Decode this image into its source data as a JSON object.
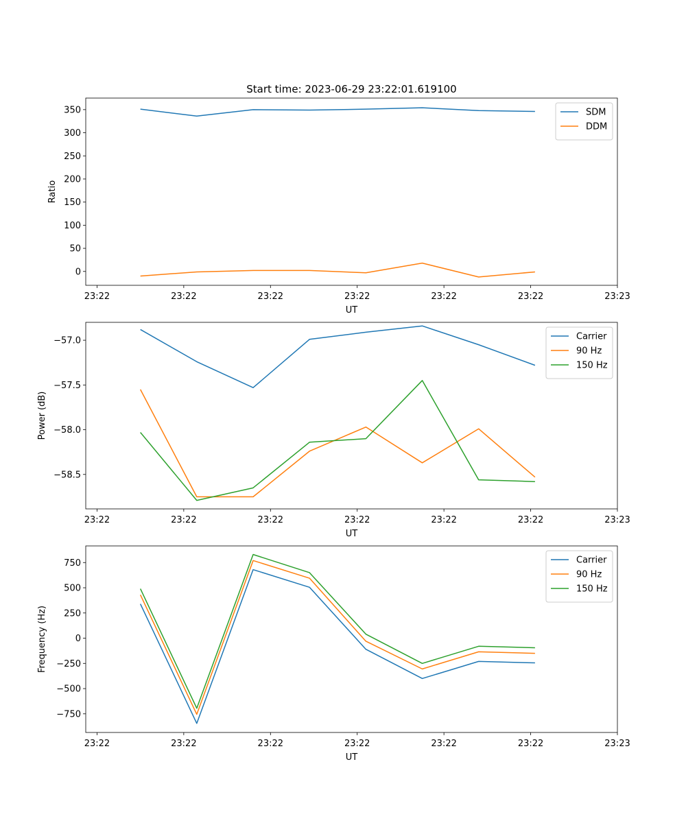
{
  "figure": {
    "title": "Start time: 2023-06-29 23:22:01.619100"
  },
  "chart_data": [
    {
      "type": "line",
      "title": "Start time: 2023-06-29 23:22:01.619100",
      "xlabel": "UT",
      "ylabel": "Ratio",
      "x_tick_labels": [
        "23:22",
        "23:22",
        "23:22",
        "23:22",
        "23:22",
        "23:22",
        "23:23"
      ],
      "x": [
        0.5,
        1.15,
        1.8,
        2.45,
        3.1,
        3.75,
        4.4,
        5.05
      ],
      "xlim": [
        -0.13,
        6.0
      ],
      "ylim": [
        -30,
        375
      ],
      "y_ticks": [
        0,
        50,
        100,
        150,
        200,
        250,
        300,
        350
      ],
      "y_tick_labels": [
        "0",
        "50",
        "100",
        "150",
        "200",
        "250",
        "300",
        "350"
      ],
      "legend_loc": "upper right",
      "grid": false,
      "series": [
        {
          "name": "SDM",
          "color": "#1f77b4",
          "values": [
            351,
            336,
            350,
            349,
            351,
            354,
            348,
            346
          ]
        },
        {
          "name": "DDM",
          "color": "#ff7f0e",
          "values": [
            -10,
            -1,
            2,
            2,
            -3,
            18,
            -12,
            -1
          ]
        }
      ]
    },
    {
      "type": "line",
      "title": "",
      "xlabel": "UT",
      "ylabel": "Power (dB)",
      "x_tick_labels": [
        "23:22",
        "23:22",
        "23:22",
        "23:22",
        "23:22",
        "23:22",
        "23:23"
      ],
      "x": [
        0.5,
        1.15,
        1.8,
        2.45,
        3.1,
        3.75,
        4.4,
        5.05
      ],
      "xlim": [
        -0.13,
        6.0
      ],
      "ylim": [
        -58.885,
        -56.8
      ],
      "y_ticks": [
        -58.5,
        -58.0,
        -57.5,
        -57.0
      ],
      "y_tick_labels": [
        "−58.5",
        "−58.0",
        "−57.5",
        "−57.0"
      ],
      "legend_loc": "upper right",
      "grid": false,
      "series": [
        {
          "name": "Carrier",
          "color": "#1f77b4",
          "values": [
            -56.88,
            -57.24,
            -57.53,
            -56.99,
            -56.91,
            -56.84,
            -57.05,
            -57.28
          ]
        },
        {
          "name": "90 Hz",
          "color": "#ff7f0e",
          "values": [
            -57.55,
            -58.75,
            -58.75,
            -58.24,
            -57.97,
            -58.37,
            -57.99,
            -58.53
          ]
        },
        {
          "name": "150 Hz",
          "color": "#2ca02c",
          "values": [
            -58.03,
            -58.79,
            -58.65,
            -58.14,
            -58.1,
            -57.45,
            -58.56,
            -58.58
          ]
        }
      ]
    },
    {
      "type": "line",
      "title": "",
      "xlabel": "UT",
      "ylabel": "Frequency (Hz)",
      "x_tick_labels": [
        "23:22",
        "23:22",
        "23:22",
        "23:22",
        "23:22",
        "23:22",
        "23:23"
      ],
      "x": [
        0.5,
        1.15,
        1.8,
        2.45,
        3.1,
        3.75,
        4.4,
        5.05
      ],
      "xlim": [
        -0.13,
        6.0
      ],
      "ylim": [
        -935,
        915
      ],
      "y_ticks": [
        -750,
        -500,
        -250,
        0,
        250,
        500,
        750
      ],
      "y_tick_labels": [
        "−750",
        "−500",
        "−250",
        "0",
        "250",
        "500",
        "750"
      ],
      "legend_loc": "upper right",
      "grid": false,
      "series": [
        {
          "name": "Carrier",
          "color": "#1f77b4",
          "values": [
            340,
            -845,
            680,
            505,
            -110,
            -400,
            -230,
            -245
          ]
        },
        {
          "name": "90 Hz",
          "color": "#ff7f0e",
          "values": [
            430,
            -755,
            770,
            595,
            -30,
            -305,
            -135,
            -150
          ]
        },
        {
          "name": "150 Hz",
          "color": "#2ca02c",
          "values": [
            490,
            -695,
            830,
            650,
            40,
            -250,
            -80,
            -95
          ]
        }
      ]
    }
  ]
}
